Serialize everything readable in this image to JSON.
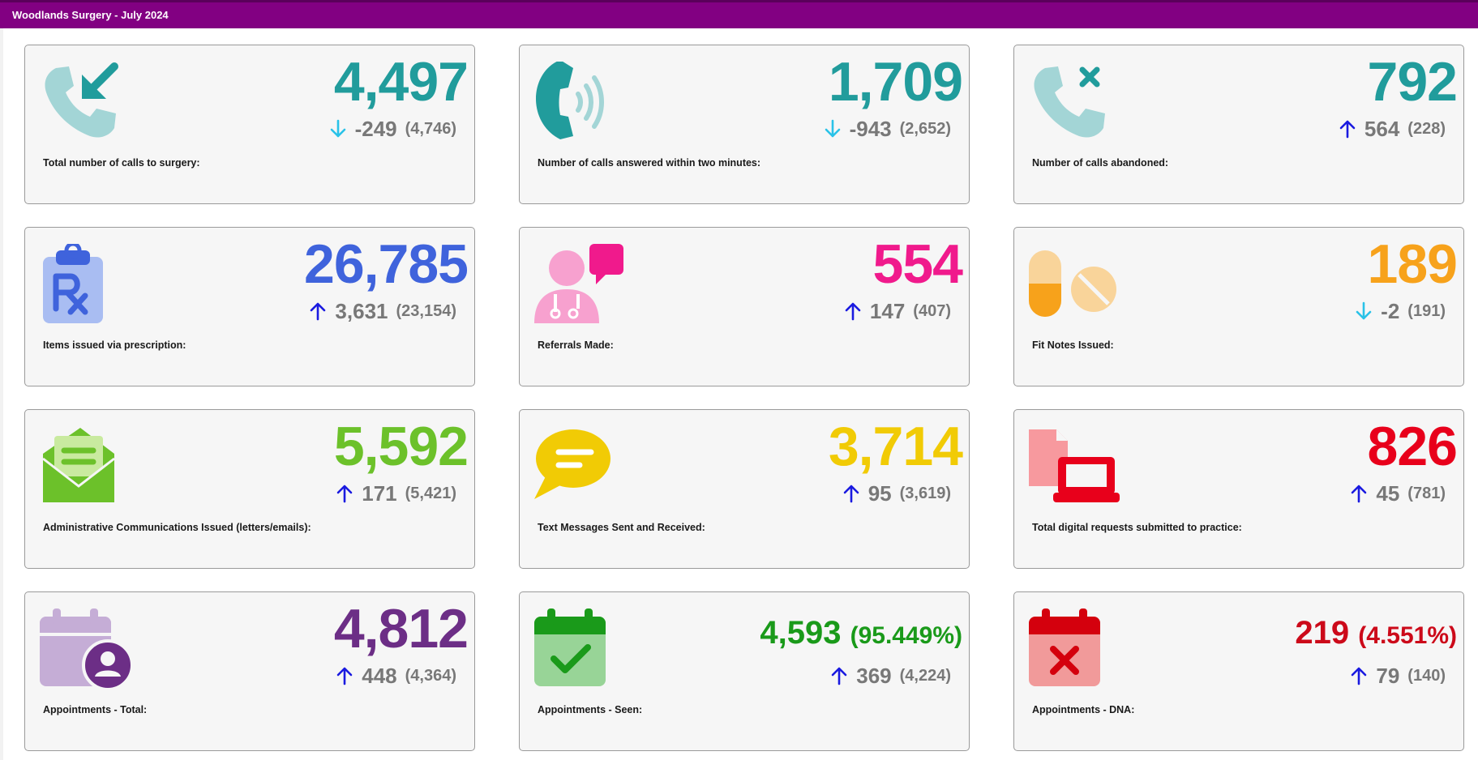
{
  "window_title": "Woodlands Surgery - July 2024",
  "colors": {
    "header": "#820082",
    "teal": "#219c9c",
    "blue": "#3f63dc",
    "pink": "#f01a8c",
    "orange": "#f7a21b",
    "green": "#6cc12a",
    "yellow": "#f1cb05",
    "red": "#e8001b",
    "purple": "#6c2e86",
    "dark_green": "#1a9a1a",
    "dark_red": "#cc0a1a",
    "arrow_up": "#1a1ae0",
    "arrow_down": "#29c2e8"
  },
  "cards": [
    {
      "id": "calls-total",
      "icon": "incoming-call-icon",
      "value": "4,497",
      "value_color": "#219c9c",
      "direction": "down",
      "change": "-249",
      "previous": "(4,746)",
      "label": "Total number of calls to surgery:"
    },
    {
      "id": "calls-answered",
      "icon": "phone-ringing-icon",
      "value": "1,709",
      "value_color": "#219c9c",
      "direction": "down",
      "change": "-943",
      "previous": "(2,652)",
      "label": "Number of calls answered within two minutes:"
    },
    {
      "id": "calls-abandoned",
      "icon": "missed-call-icon",
      "value": "792",
      "value_color": "#219c9c",
      "direction": "up",
      "change": "564",
      "previous": "(228)",
      "label": "Number of calls abandoned:"
    },
    {
      "id": "prescriptions",
      "icon": "prescription-clipboard-icon",
      "value": "26,785",
      "value_color": "#3f63dc",
      "direction": "up",
      "change": "3,631",
      "previous": "(23,154)",
      "label": "Items issued via prescription:"
    },
    {
      "id": "referrals",
      "icon": "doctor-chat-icon",
      "value": "554",
      "value_color": "#f01a8c",
      "direction": "up",
      "change": "147",
      "previous": "(407)",
      "label": "Referrals Made:"
    },
    {
      "id": "fit-notes",
      "icon": "pills-icon",
      "value": "189",
      "value_color": "#f7a21b",
      "direction": "down",
      "change": "-2",
      "previous": "(191)",
      "label": "Fit Notes Issued:"
    },
    {
      "id": "admin-comms",
      "icon": "open-envelope-icon",
      "value": "5,592",
      "value_color": "#6cc12a",
      "direction": "up",
      "change": "171",
      "previous": "(5,421)",
      "label": "Administrative Communications Issued (letters/emails):"
    },
    {
      "id": "text-messages",
      "icon": "speech-bubble-icon",
      "value": "3,714",
      "value_color": "#f1cb05",
      "direction": "up",
      "change": "95",
      "previous": "(3,619)",
      "label": "Text Messages Sent and Received:"
    },
    {
      "id": "digital-requests",
      "icon": "laptop-document-icon",
      "value": "826",
      "value_color": "#e8001b",
      "direction": "up",
      "change": "45",
      "previous": "(781)",
      "label": "Total digital requests submitted to practice:"
    },
    {
      "id": "appointments-total",
      "icon": "calendar-person-icon",
      "value": "4,812",
      "value_color": "#6c2e86",
      "direction": "up",
      "change": "448",
      "previous": "(4,364)",
      "label": "Appointments - Total:"
    },
    {
      "id": "appointments-seen",
      "icon": "calendar-check-icon",
      "value": "4,593",
      "pct": "(95.449%)",
      "value_color": "#1a9a1a",
      "direction": "up",
      "change": "369",
      "previous": "(4,224)",
      "label": "Appointments - Seen:"
    },
    {
      "id": "appointments-dna",
      "icon": "calendar-cross-icon",
      "value": "219",
      "pct": "(4.551%)",
      "value_color": "#cc0a1a",
      "direction": "up",
      "change": "79",
      "previous": "(140)",
      "label": "Appointments - DNA:"
    }
  ]
}
